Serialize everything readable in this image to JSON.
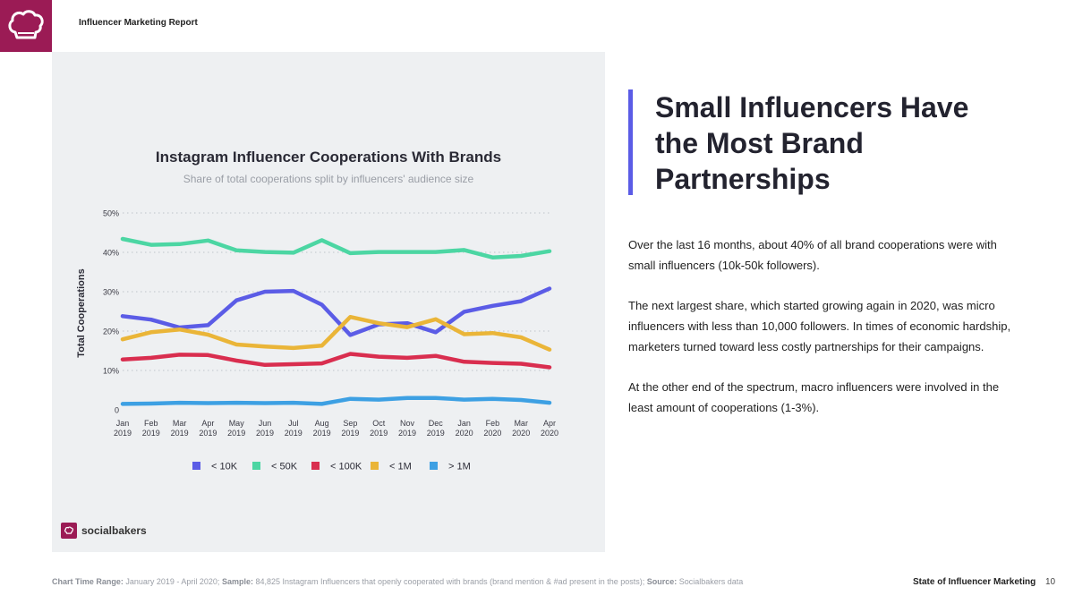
{
  "header": {
    "report_name": "Influencer Marketing Report",
    "logo_icon": "chef-hat-icon",
    "logo_color": "#9b1b55"
  },
  "headline": "Small Influencers Have the Most Brand Partnerships",
  "body": [
    "Over the last 16 months, about 40% of all brand cooperations were with small influencers (10k-50k followers).",
    "The next largest share, which started growing again in 2020, was micro influencers with less than 10,000 followers. In times of economic hardship, marketers turned toward less costly partnerships for their campaigns.",
    "At the other end of the spectrum, macro influencers were involved in the least amount of cooperations (1-3%)."
  ],
  "brand": {
    "name": "socialbakers",
    "icon": "chef-hat-icon"
  },
  "footer": {
    "time_range_label": "Chart Time Range:",
    "time_range": " January 2019 - April 2020; ",
    "sample_label": "Sample:",
    "sample": " 84,825 Instagram Influencers that openly cooperated with brands (brand mention & #ad present in the posts); ",
    "source_label": "Source:",
    "source": " Socialbakers data",
    "report_title": "State of Influencer Marketing",
    "page": "10"
  },
  "chart_data": {
    "type": "line",
    "title": "Instagram Influencer Cooperations With Brands",
    "subtitle": "Share of total cooperations split by influencers' audience size",
    "ylabel": "Total Cooperations",
    "xlabel": "",
    "ylim": [
      0,
      50
    ],
    "yticks": [
      0,
      10,
      20,
      30,
      40,
      50
    ],
    "ytick_labels": [
      "0",
      "10%",
      "20%",
      "30%",
      "40%",
      "50%"
    ],
    "grid": true,
    "legend_position": "bottom",
    "categories": [
      [
        "Jan",
        "2019"
      ],
      [
        "Feb",
        "2019"
      ],
      [
        "Mar",
        "2019"
      ],
      [
        "Apr",
        "2019"
      ],
      [
        "May",
        "2019"
      ],
      [
        "Jun",
        "2019"
      ],
      [
        "Jul",
        "2019"
      ],
      [
        "Aug",
        "2019"
      ],
      [
        "Sep",
        "2019"
      ],
      [
        "Oct",
        "2019"
      ],
      [
        "Nov",
        "2019"
      ],
      [
        "Dec",
        "2019"
      ],
      [
        "Jan",
        "2020"
      ],
      [
        "Feb",
        "2020"
      ],
      [
        "Mar",
        "2020"
      ],
      [
        "Apr",
        "2020"
      ]
    ],
    "series": [
      {
        "name": "< 10K",
        "color": "#5b5ce6",
        "values": [
          23.8,
          22.9,
          20.9,
          21.5,
          27.8,
          30.0,
          30.2,
          26.7,
          19.0,
          21.7,
          22.0,
          19.7,
          24.9,
          26.4,
          27.6,
          30.8
        ]
      },
      {
        "name": "< 50K",
        "color": "#4cd6a3",
        "values": [
          43.4,
          41.9,
          42.1,
          43.0,
          40.5,
          40.1,
          39.9,
          43.1,
          39.8,
          40.1,
          40.1,
          40.1,
          40.6,
          38.7,
          39.1,
          40.3
        ]
      },
      {
        "name": "< 100K",
        "color": "#d92e4f",
        "values": [
          12.8,
          13.2,
          14.0,
          13.9,
          12.5,
          11.4,
          11.6,
          11.8,
          14.2,
          13.5,
          13.2,
          13.7,
          12.2,
          11.9,
          11.7,
          10.8
        ]
      },
      {
        "name": "< 1M",
        "color": "#eab538",
        "values": [
          17.9,
          19.7,
          20.4,
          19.1,
          16.6,
          16.1,
          15.7,
          16.3,
          23.6,
          22.0,
          21.0,
          23.0,
          19.2,
          19.5,
          18.4,
          15.3
        ]
      },
      {
        "name": "> 1M",
        "color": "#3da0e3",
        "values": [
          1.5,
          1.6,
          1.8,
          1.7,
          1.8,
          1.7,
          1.8,
          1.5,
          2.8,
          2.6,
          3.0,
          3.0,
          2.6,
          2.8,
          2.5,
          1.8
        ]
      }
    ]
  }
}
